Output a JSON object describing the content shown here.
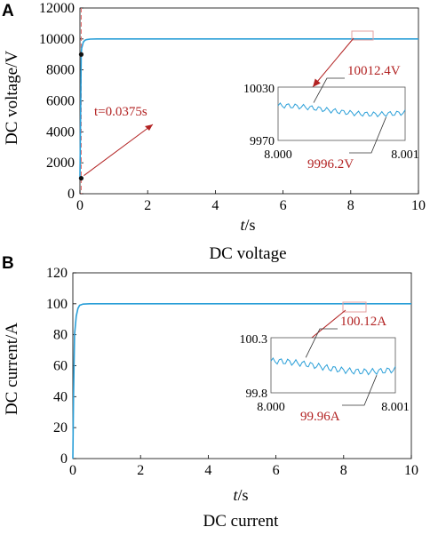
{
  "colors": {
    "series": "#2a9fd8",
    "annotation": "#b22222",
    "axes": "#000000",
    "highlight_box": "#e4a0a0",
    "dashed": "#e36a6a"
  },
  "chart_data": [
    {
      "type": "line",
      "panel_label": "A",
      "caption": "DC voltage",
      "xlabel_italic": "t",
      "xlabel_unit": "/s",
      "ylabel": "DC  voltage/V",
      "xlim": [
        0,
        10
      ],
      "ylim": [
        0,
        12000
      ],
      "xticks": [
        "0",
        "2",
        "4",
        "6",
        "8",
        "10"
      ],
      "yticks": [
        "0",
        "2000",
        "4000",
        "6000",
        "8000",
        "10000",
        "12000"
      ],
      "series": [
        {
          "x": [
            0,
            0.0375,
            0.05,
            0.1,
            0.15,
            0.2,
            0.3,
            0.5,
            1,
            10
          ],
          "y": [
            1000,
            9000,
            9400,
            9800,
            9920,
            9960,
            9990,
            10000,
            10000,
            10000
          ]
        }
      ],
      "annotations": {
        "time_label": "t=0.0375s",
        "time_value": 0.0375,
        "points": [
          {
            "x": 0.0375,
            "y": 1000
          },
          {
            "x": 0.0375,
            "y": 9000
          }
        ]
      },
      "inset": {
        "ylim_labels": [
          "10030",
          "9970"
        ],
        "ylim": [
          9970,
          10030
        ],
        "xlim_labels": [
          "8.000",
          "8.001"
        ],
        "xlim": [
          8.0,
          8.001
        ],
        "max_label": "10012.4V",
        "max_value": 10012.4,
        "min_label": "9996.2V",
        "min_value": 9996.2
      }
    },
    {
      "type": "line",
      "panel_label": "B",
      "caption": "DC current",
      "xlabel_italic": "t",
      "xlabel_unit": "/s",
      "ylabel": "DC  current/A",
      "xlim": [
        0,
        10
      ],
      "ylim": [
        0,
        120
      ],
      "xticks": [
        "0",
        "2",
        "4",
        "6",
        "8",
        "10"
      ],
      "yticks": [
        "0",
        "20",
        "40",
        "60",
        "80",
        "100",
        "120"
      ],
      "series": [
        {
          "x": [
            0,
            0.02,
            0.05,
            0.1,
            0.15,
            0.2,
            0.3,
            0.5,
            1,
            10
          ],
          "y": [
            0,
            40,
            80,
            92,
            97,
            99,
            99.8,
            100,
            100,
            100
          ]
        }
      ],
      "inset": {
        "ylim_labels": [
          "100.3",
          "99.8"
        ],
        "ylim": [
          99.8,
          100.3
        ],
        "xlim_labels": [
          "8.000",
          "8.001"
        ],
        "xlim": [
          8.0,
          8.001
        ],
        "max_label": "100.12A",
        "max_value": 100.12,
        "min_label": "99.96A",
        "min_value": 99.96
      }
    }
  ]
}
